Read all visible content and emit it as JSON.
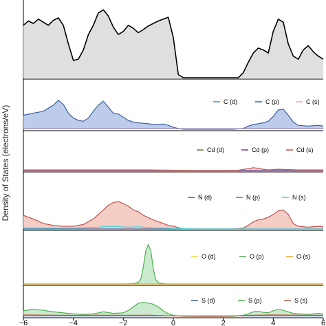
{
  "chart_data": {
    "type": "area",
    "ylabel": "Density of States (electrons/eV)",
    "xlabel": "",
    "xlim": [
      -6,
      6
    ],
    "xticks": [
      -6,
      -4,
      -2,
      0,
      2,
      4,
      6
    ],
    "grid": false,
    "panels": [
      {
        "name": "total",
        "ymax": 1.0,
        "legend": [],
        "series": [
          {
            "name": "",
            "color": "#000000",
            "fill": "#d9d9d9",
            "x": [
              -6,
              -5.8,
              -5.6,
              -5.4,
              -5.2,
              -5,
              -4.8,
              -4.6,
              -4.4,
              -4.2,
              -4,
              -3.8,
              -3.6,
              -3.4,
              -3.2,
              -3.0,
              -2.8,
              -2.6,
              -2.4,
              -2.2,
              -2,
              -1.8,
              -1.6,
              -1.4,
              -1.2,
              -1.0,
              -0.8,
              -0.6,
              -0.4,
              -0.2,
              0,
              0.2,
              0.4,
              0.6,
              0.8,
              1.0,
              1.2,
              1.4,
              1.6,
              1.8,
              2.0,
              2.2,
              2.4,
              2.6,
              2.8,
              3.0,
              3.2,
              3.4,
              3.6,
              3.8,
              4.0,
              4.2,
              4.4,
              4.6,
              4.8,
              5.0,
              5.2,
              5.4,
              5.6,
              5.8,
              6
            ],
            "y": [
              0.85,
              0.92,
              0.88,
              0.95,
              0.9,
              0.85,
              0.93,
              0.97,
              0.85,
              0.55,
              0.28,
              0.3,
              0.45,
              0.7,
              0.85,
              1.05,
              1.1,
              1.0,
              0.82,
              0.7,
              0.75,
              0.85,
              0.8,
              0.73,
              0.78,
              0.84,
              0.88,
              0.92,
              0.95,
              0.98,
              0.65,
              0.05,
              0.0,
              0.0,
              0.0,
              0.0,
              0.0,
              0.0,
              0.0,
              0.0,
              0.0,
              0.0,
              0.0,
              0.0,
              0.08,
              0.25,
              0.4,
              0.48,
              0.45,
              0.4,
              0.75,
              0.95,
              0.9,
              0.55,
              0.35,
              0.3,
              0.45,
              0.52,
              0.42,
              0.35,
              0.3
            ]
          }
        ]
      },
      {
        "name": "C",
        "ymax": 1.0,
        "legend": [
          "C (d)",
          "C (p)",
          "C (s)"
        ],
        "series": [
          {
            "name": "C (d)",
            "color": "#4a90d9",
            "fill": "none",
            "x": [
              -6,
              6
            ],
            "y": [
              0.02,
              0.02
            ]
          },
          {
            "name": "C (p)",
            "color": "#3a5fa0",
            "fill": "#b3c3e8",
            "x": [
              -6,
              -5.6,
              -5.2,
              -4.8,
              -4.6,
              -4.4,
              -4.2,
              -4,
              -3.8,
              -3.6,
              -3.4,
              -3.2,
              -3.0,
              -2.8,
              -2.6,
              -2.4,
              -2.2,
              -2,
              -1.8,
              -1.6,
              -1.4,
              -1.2,
              -1.0,
              -0.8,
              -0.6,
              -0.4,
              -0.2,
              0,
              0.2,
              0.4,
              0.8,
              1.2,
              1.6,
              2.0,
              2.4,
              2.8,
              3.0,
              3.2,
              3.4,
              3.6,
              3.8,
              4.0,
              4.2,
              4.4,
              4.6,
              4.8,
              5.0,
              5.4,
              5.8,
              6
            ],
            "y": [
              0.35,
              0.4,
              0.45,
              0.6,
              0.72,
              0.62,
              0.4,
              0.28,
              0.22,
              0.2,
              0.28,
              0.45,
              0.6,
              0.7,
              0.55,
              0.4,
              0.38,
              0.3,
              0.22,
              0.18,
              0.16,
              0.15,
              0.14,
              0.12,
              0.12,
              0.13,
              0.1,
              0.05,
              0.02,
              0.0,
              0.0,
              0.0,
              0.0,
              0.0,
              0.0,
              0.02,
              0.08,
              0.12,
              0.14,
              0.16,
              0.2,
              0.32,
              0.48,
              0.5,
              0.35,
              0.18,
              0.1,
              0.08,
              0.1,
              0.08
            ]
          },
          {
            "name": "C (s)",
            "color": "#e6a8c0",
            "fill": "none",
            "x": [
              -6,
              6
            ],
            "y": [
              0.01,
              0.01
            ]
          }
        ]
      },
      {
        "name": "Cd",
        "ymax": 1.0,
        "legend": [
          "Cd (d)",
          "Cd (p)",
          "Cd (s)"
        ],
        "series": [
          {
            "name": "Cd (d)",
            "color": "#4d8a3a",
            "fill": "none",
            "x": [
              -6,
              6
            ],
            "y": [
              0.0,
              0.0
            ]
          },
          {
            "name": "Cd (p)",
            "color": "#7b3fa0",
            "fill": "none",
            "x": [
              -6,
              6
            ],
            "y": [
              0.005,
              0.005
            ]
          },
          {
            "name": "Cd (s)",
            "color": "#c0504d",
            "fill": "#f0c8c0",
            "x": [
              -6,
              -5,
              -4,
              -3,
              -2,
              -1,
              0,
              1,
              2,
              2.6,
              3.0,
              3.2,
              3.4,
              3.6,
              3.8,
              4.0,
              4.2,
              4.6,
              5.0,
              5.4,
              6
            ],
            "y": [
              0.02,
              0.02,
              0.02,
              0.02,
              0.02,
              0.02,
              0.01,
              0.0,
              0.0,
              0.01,
              0.06,
              0.09,
              0.07,
              0.04,
              0.02,
              0.03,
              0.04,
              0.03,
              0.02,
              0.02,
              0.02
            ]
          }
        ]
      },
      {
        "name": "N",
        "ymax": 1.0,
        "legend": [
          "N (d)",
          "N (p)",
          "N (s)"
        ],
        "series": [
          {
            "name": "N (d)",
            "color": "#3a5fa0",
            "fill": "none",
            "x": [
              -6,
              6
            ],
            "y": [
              0.0,
              0.0
            ]
          },
          {
            "name": "N (p)",
            "color": "#c0504d",
            "fill": "#f2c4bb",
            "x": [
              -6,
              -5.6,
              -5.2,
              -4.8,
              -4.4,
              -4,
              -3.6,
              -3.2,
              -3.0,
              -2.8,
              -2.6,
              -2.4,
              -2.2,
              -2,
              -1.8,
              -1.6,
              -1.4,
              -1.2,
              -1.0,
              -0.8,
              -0.6,
              -0.4,
              -0.2,
              0,
              0.2,
              0.4,
              0.8,
              1.2,
              1.6,
              2.0,
              2.4,
              2.8,
              3.0,
              3.2,
              3.4,
              3.6,
              3.8,
              4.0,
              4.2,
              4.4,
              4.6,
              4.8,
              5.0,
              5.4,
              5.8,
              6
            ],
            "y": [
              0.3,
              0.22,
              0.12,
              0.08,
              0.06,
              0.06,
              0.1,
              0.22,
              0.32,
              0.42,
              0.52,
              0.58,
              0.6,
              0.56,
              0.5,
              0.42,
              0.38,
              0.3,
              0.25,
              0.2,
              0.16,
              0.12,
              0.08,
              0.06,
              0.03,
              0.0,
              0.0,
              0.0,
              0.0,
              0.0,
              0.0,
              0.02,
              0.08,
              0.16,
              0.2,
              0.22,
              0.26,
              0.32,
              0.4,
              0.42,
              0.32,
              0.12,
              0.06,
              0.04,
              0.06,
              0.05
            ]
          },
          {
            "name": "N (s)",
            "color": "#40d0d8",
            "fill": "none",
            "x": [
              -6,
              -4,
              -3,
              -2.6,
              -2.2,
              -1.8,
              -1.4,
              -1,
              -0.4,
              0,
              1,
              6
            ],
            "y": [
              0.02,
              0.02,
              0.04,
              0.06,
              0.05,
              0.04,
              0.05,
              0.03,
              0.02,
              0.01,
              0.0,
              0.0
            ]
          }
        ]
      },
      {
        "name": "O",
        "ymax": 1.0,
        "legend": [
          "O (d)",
          "O (p)",
          "O (s)"
        ],
        "series": [
          {
            "name": "O (d)",
            "color": "#e8d83a",
            "fill": "none",
            "x": [
              -6,
              6
            ],
            "y": [
              0.0,
              0.0
            ]
          },
          {
            "name": "O (p)",
            "color": "#4caf50",
            "fill": "#bfe6c4",
            "x": [
              -6,
              -2,
              -1.6,
              -1.4,
              -1.3,
              -1.2,
              -1.1,
              -1.0,
              -0.9,
              -0.8,
              -0.7,
              -0.6,
              -0.4,
              -0.2,
              0,
              6
            ],
            "y": [
              0.0,
              0.0,
              0.01,
              0.04,
              0.12,
              0.4,
              0.78,
              0.92,
              0.78,
              0.35,
              0.1,
              0.03,
              0.01,
              0.0,
              0.0,
              0.0
            ]
          },
          {
            "name": "O (s)",
            "color": "#e8a838",
            "fill": "none",
            "x": [
              -6,
              6
            ],
            "y": [
              0.0,
              0.0
            ]
          }
        ]
      },
      {
        "name": "S",
        "ymax": 1.0,
        "legend": [
          "S (d)",
          "S (p)",
          "S (s)"
        ],
        "series": [
          {
            "name": "S (d)",
            "color": "#3a5fa0",
            "fill": "none",
            "x": [
              -6,
              6
            ],
            "y": [
              0.02,
              0.02
            ]
          },
          {
            "name": "S (p)",
            "color": "#4caf50",
            "fill": "#bfe6c4",
            "x": [
              -6,
              -5.6,
              -5.2,
              -4.8,
              -4.4,
              -4,
              -3.6,
              -3.2,
              -2.8,
              -2.4,
              -2,
              -1.8,
              -1.6,
              -1.4,
              -1.2,
              -1.0,
              -0.8,
              -0.6,
              -0.4,
              -0.2,
              0,
              0.2,
              0.4,
              0.8,
              1.2,
              1.6,
              2.0,
              2.4,
              2.8,
              3.0,
              3.2,
              3.4,
              3.6,
              3.8,
              4.0,
              4.2,
              4.4,
              4.6,
              4.8,
              5.0,
              5.4,
              5.8,
              6
            ],
            "y": [
              0.22,
              0.28,
              0.24,
              0.18,
              0.14,
              0.1,
              0.08,
              0.1,
              0.18,
              0.12,
              0.14,
              0.24,
              0.38,
              0.52,
              0.55,
              0.53,
              0.48,
              0.38,
              0.22,
              0.1,
              0.04,
              0.02,
              0.0,
              0.0,
              0.0,
              0.0,
              0.0,
              0.0,
              0.04,
              0.1,
              0.18,
              0.2,
              0.16,
              0.14,
              0.22,
              0.28,
              0.24,
              0.18,
              0.12,
              0.1,
              0.08,
              0.12,
              0.1
            ]
          },
          {
            "name": "S (s)",
            "color": "#c0604d",
            "fill": "none",
            "x": [
              -6,
              -5,
              -4,
              -3,
              -2,
              -1,
              0,
              1,
              2,
              3,
              4,
              5,
              6
            ],
            "y": [
              0.06,
              0.05,
              0.04,
              0.05,
              0.04,
              0.05,
              0.02,
              0.0,
              0.0,
              0.04,
              0.06,
              0.05,
              0.04
            ]
          }
        ]
      }
    ]
  }
}
